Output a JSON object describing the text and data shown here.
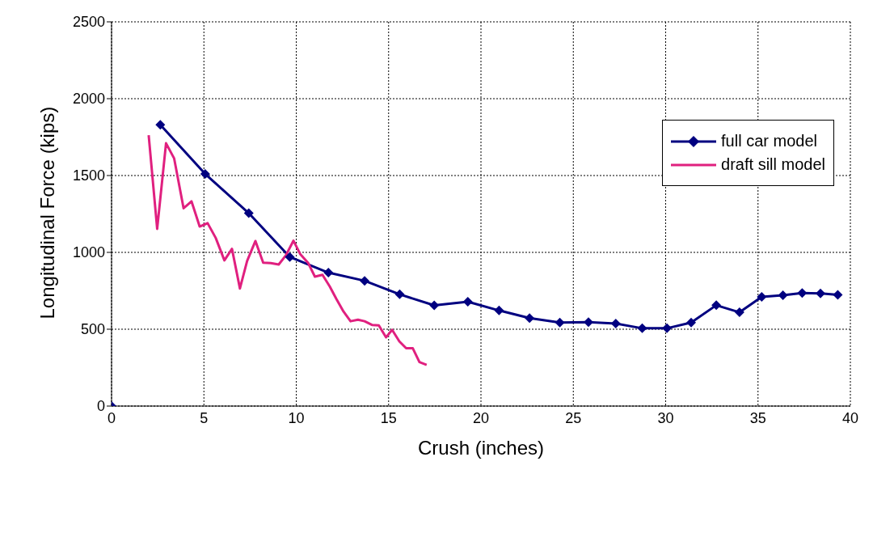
{
  "chart_data": {
    "type": "line",
    "xlabel": "Crush (inches)",
    "ylabel": "Longitudinal Force (kips)",
    "xlim": [
      0,
      40
    ],
    "xticks": [
      0,
      5,
      10,
      15,
      20,
      25,
      30,
      35,
      40
    ],
    "ylim": [
      0,
      2500
    ],
    "yticks": [
      0,
      500,
      1000,
      1500,
      2000,
      2500
    ],
    "grid": true,
    "legend": "top right",
    "series": [
      {
        "name": "full car model",
        "color": "#000080",
        "marker": "diamond",
        "x": [
          0,
          1.3,
          2.64,
          5.07,
          7.43,
          9.65,
          11.74,
          13.7,
          15.6,
          17.47,
          19.29,
          20.98,
          22.63,
          24.27,
          25.82,
          27.3,
          28.73,
          30.07,
          31.38,
          32.74,
          34.0,
          35.2,
          36.35,
          37.39,
          38.38,
          39.32
        ],
        "values": [
          0,
          null,
          1830,
          1510,
          1255,
          970,
          868,
          815,
          727,
          655,
          679,
          622,
          572,
          543,
          546,
          537,
          506,
          506,
          543,
          656,
          610,
          711,
          721,
          736,
          733,
          724
        ]
      },
      {
        "name": "draft sill model",
        "color": "#e0207f",
        "marker": "none",
        "x": [
          2.01,
          2.47,
          2.95,
          3.39,
          3.9,
          4.33,
          4.77,
          5.2,
          5.64,
          6.11,
          6.52,
          6.95,
          7.34,
          7.79,
          8.21,
          8.62,
          9.05,
          9.44,
          9.85,
          10.21,
          10.65,
          11.01,
          11.42,
          11.81,
          12.17,
          12.56,
          12.94,
          13.34,
          13.7,
          14.1,
          14.47,
          14.86,
          15.19,
          15.58,
          15.95,
          16.31,
          16.67,
          17.06
        ],
        "values": [
          1763,
          1153,
          1710,
          1611,
          1287,
          1332,
          1168,
          1190,
          1094,
          948,
          1023,
          765,
          944,
          1074,
          933,
          930,
          921,
          981,
          1076,
          990,
          930,
          842,
          854,
          779,
          697,
          615,
          552,
          562,
          552,
          528,
          525,
          447,
          496,
          421,
          376,
          376,
          286,
          268
        ]
      }
    ]
  }
}
